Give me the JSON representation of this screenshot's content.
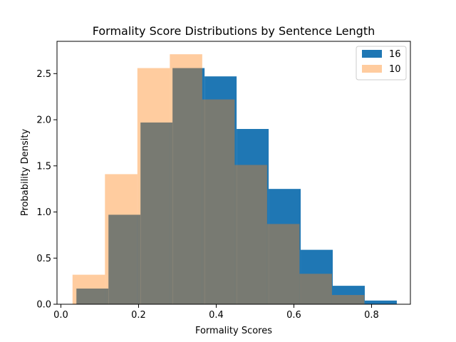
{
  "chart_data": {
    "type": "histogram",
    "title": "Formality Score Distributions by Sentence Length",
    "xlabel": "Formality Scores",
    "ylabel": "Probability Density",
    "xlim": [
      -0.01,
      0.9
    ],
    "ylim": [
      0,
      2.85
    ],
    "xticks": [
      0.0,
      0.2,
      0.4,
      0.6,
      0.8
    ],
    "xtick_labels": [
      "0.0",
      "0.2",
      "0.4",
      "0.6",
      "0.8"
    ],
    "yticks": [
      0.0,
      0.5,
      1.0,
      1.5,
      2.0,
      2.5
    ],
    "ytick_labels": [
      "0.0",
      "0.5",
      "1.0",
      "1.5",
      "2.0",
      "2.5"
    ],
    "legend_position": "top-right",
    "series": [
      {
        "name": "16",
        "color": "#1f77b4",
        "opacity": 1.0,
        "bin_edges": [
          0.04,
          0.1225,
          0.205,
          0.2875,
          0.37,
          0.4525,
          0.535,
          0.6175,
          0.7,
          0.7825,
          0.865
        ],
        "values": [
          0.17,
          0.97,
          1.97,
          2.56,
          2.47,
          1.9,
          1.25,
          0.59,
          0.2,
          0.04
        ]
      },
      {
        "name": "10",
        "color": "#ff7f0e",
        "opacity": 0.4,
        "bin_edges": [
          0.03,
          0.1135,
          0.197,
          0.2805,
          0.364,
          0.4475,
          0.531,
          0.6145,
          0.698,
          0.7815
        ],
        "values": [
          0.32,
          1.41,
          2.56,
          2.71,
          2.22,
          1.51,
          0.87,
          0.33,
          0.1
        ]
      }
    ]
  }
}
